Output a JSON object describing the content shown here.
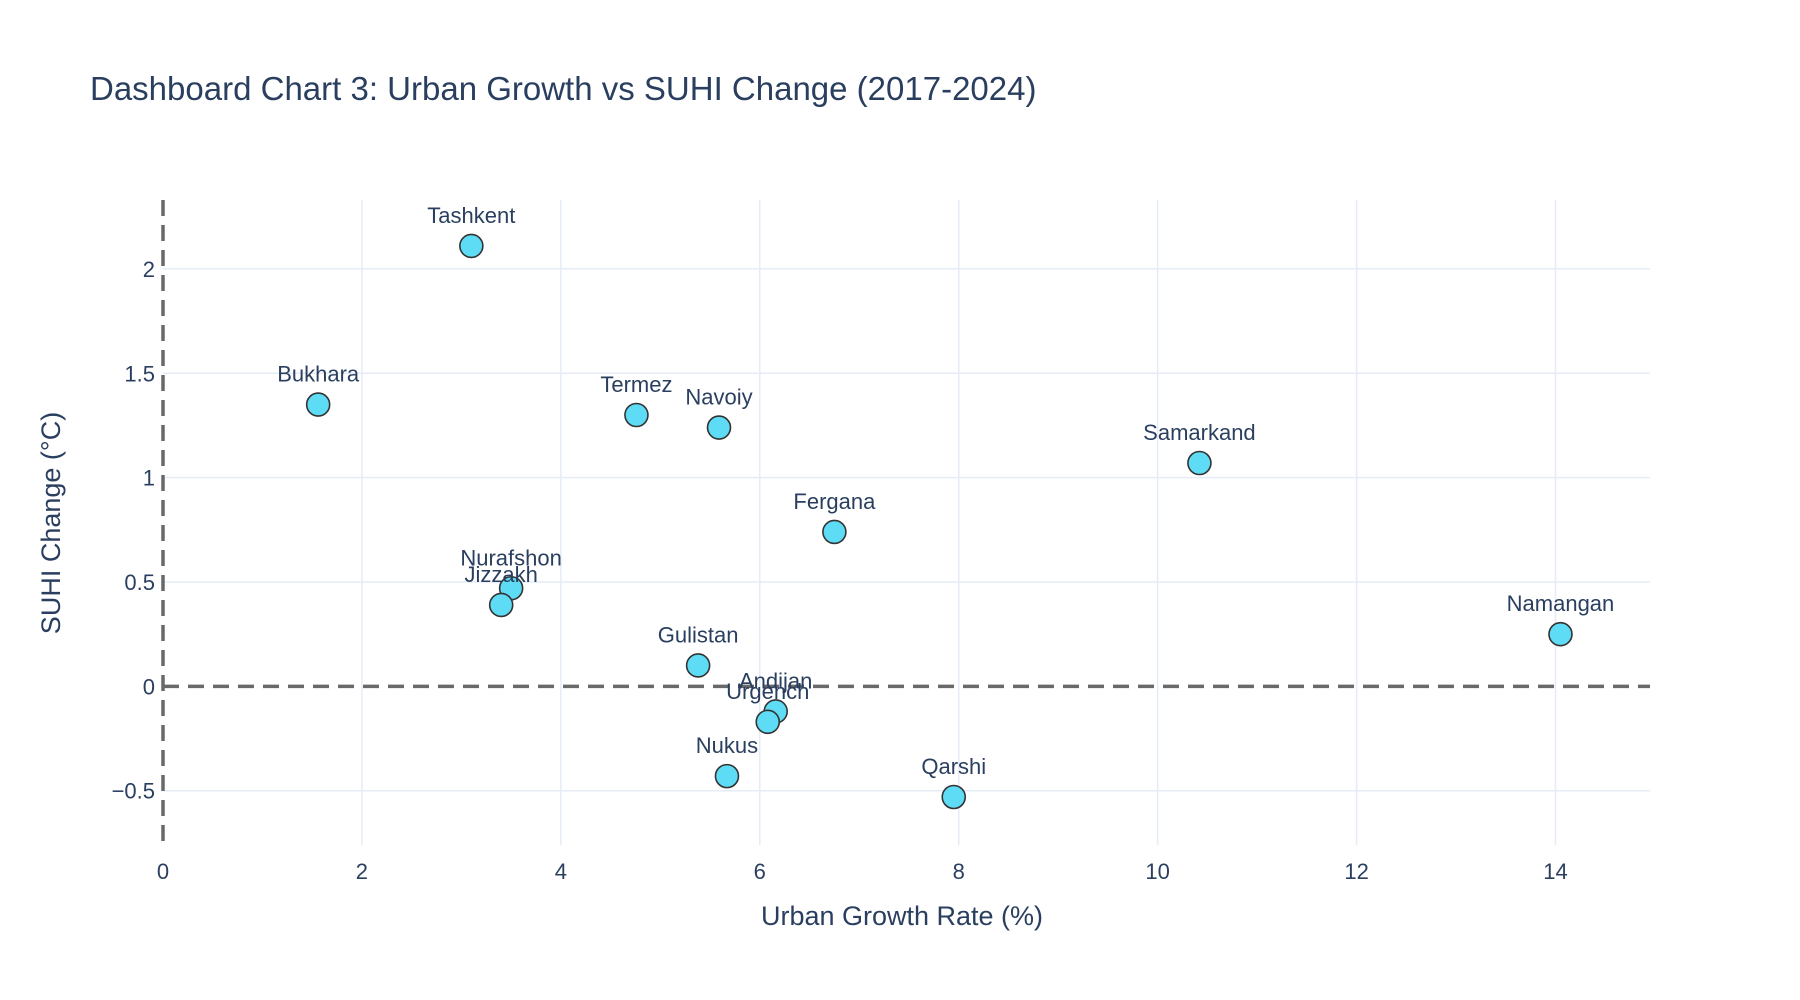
{
  "colors": {
    "marker": "#5fdcf5",
    "marker_outline": "#333333",
    "grid": "#e5ecf6",
    "reference_line": "#696969",
    "text": "#2a3f5f"
  },
  "chart_data": {
    "type": "scatter",
    "title": "Dashboard Chart 3: Urban Growth vs SUHI Change (2017-2024)",
    "xlabel": "Urban Growth Rate (%)",
    "ylabel": "SUHI Change (°C)",
    "xlim": [
      0,
      14.95
    ],
    "ylim": [
      -0.76,
      2.33
    ],
    "x_ticks": [
      0,
      2,
      4,
      6,
      8,
      10,
      12,
      14
    ],
    "x_tick_labels": [
      "0",
      "2",
      "4",
      "6",
      "8",
      "10",
      "12",
      "14"
    ],
    "y_ticks": [
      -0.5,
      0,
      0.5,
      1,
      1.5,
      2
    ],
    "y_tick_labels": [
      "−0.5",
      "0",
      "0.5",
      "1",
      "1.5",
      "2"
    ],
    "grid": true,
    "reference_lines": {
      "x": 0,
      "y": 0,
      "style": "dashed"
    },
    "points": [
      {
        "label": "Tashkent",
        "x": 3.1,
        "y": 2.11
      },
      {
        "label": "Bukhara",
        "x": 1.56,
        "y": 1.35
      },
      {
        "label": "Termez",
        "x": 4.76,
        "y": 1.3
      },
      {
        "label": "Navoiy",
        "x": 5.59,
        "y": 1.24
      },
      {
        "label": "Samarkand",
        "x": 10.42,
        "y": 1.07
      },
      {
        "label": "Fergana",
        "x": 6.75,
        "y": 0.74
      },
      {
        "label": "Nurafshon",
        "x": 3.5,
        "y": 0.47
      },
      {
        "label": "Jizzakh",
        "x": 3.4,
        "y": 0.39
      },
      {
        "label": "Namangan",
        "x": 14.05,
        "y": 0.25
      },
      {
        "label": "Gulistan",
        "x": 5.38,
        "y": 0.1
      },
      {
        "label": "Andijan",
        "x": 6.16,
        "y": -0.12
      },
      {
        "label": "Urgench",
        "x": 6.08,
        "y": -0.17
      },
      {
        "label": "Nukus",
        "x": 5.67,
        "y": -0.43
      },
      {
        "label": "Qarshi",
        "x": 7.95,
        "y": -0.53
      }
    ]
  }
}
